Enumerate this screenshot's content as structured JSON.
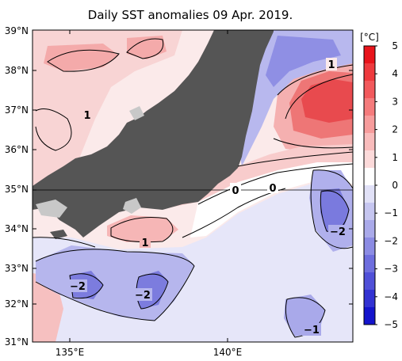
{
  "title": "Daily SST anomalies 09 Apr. 2019.",
  "unit": "[°C]",
  "lat_labels": [
    "39°N",
    "38°N",
    "37°N",
    "36°N",
    "35°N",
    "34°N",
    "33°N",
    "32°N",
    "31°N"
  ],
  "lon_labels": [
    "135°E",
    "140°E"
  ],
  "colorbar": {
    "ticks": [
      "5",
      "4",
      "3",
      "2",
      "1",
      "0",
      "−1",
      "−2",
      "−3",
      "−4",
      "−5"
    ],
    "colors_top_to_bottom": [
      "#e8141b",
      "#ee3a3e",
      "#f2595c",
      "#f57b7c",
      "#f79c9c",
      "#f9bcbc",
      "#fcdada",
      "#ffffff",
      "#e1e1f7",
      "#c6c6f0",
      "#aaaaea",
      "#8c8ce4",
      "#6e6ede",
      "#5050d8",
      "#3232d2",
      "#1414cc"
    ]
  },
  "contour_labels": [
    {
      "name": "label-1-north",
      "text": "1"
    },
    {
      "name": "label-1-west",
      "text": "1"
    },
    {
      "name": "label-0-west",
      "text": "0"
    },
    {
      "name": "label-0-east",
      "text": "0"
    },
    {
      "name": "label-1-south",
      "text": "1"
    },
    {
      "name": "label-minus2-east",
      "text": "−2"
    },
    {
      "name": "label-minus2-west",
      "text": "−2"
    },
    {
      "name": "label-minus2-center",
      "text": "−2"
    },
    {
      "name": "label-minus1-south",
      "text": "−1"
    }
  ],
  "colors": {
    "land": "#555555",
    "land_missing": "#c8c8c8",
    "warm_strong": "#e8454a",
    "warm_mid": "#f29a9a",
    "warm_light": "#f8cfcf",
    "cool_light": "#dcdcf6",
    "cool_mid": "#a8a8ea",
    "cool_strong": "#7a7ade"
  }
}
